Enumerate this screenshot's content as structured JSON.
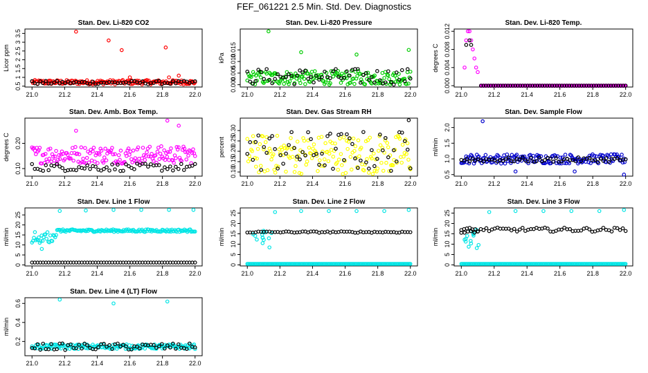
{
  "title": "FEF_061221  2.5 Min. Std. Dev. Diagnostics",
  "chart_data": [
    {
      "type": "scatter",
      "title": "Stan. Dev. Li-820 CO2",
      "ylabel": "Licor ppm",
      "xlim": [
        21.0,
        22.0
      ],
      "ylim": [
        0.45,
        3.75
      ],
      "xticks": [
        21.0,
        21.2,
        21.4,
        21.6,
        21.8,
        22.0
      ],
      "yticks": [
        0.5,
        1.0,
        1.5,
        2.0,
        2.5,
        3.0,
        3.5
      ],
      "ytick_labels": [
        "0.5",
        "1",
        "1.5",
        "2",
        "2.5",
        "3",
        "3.5"
      ],
      "series": [
        {
          "name": "red",
          "color": "#ff0000",
          "band": [
            0.6,
            0.85
          ],
          "outliers": [
            [
              21.27,
              3.6
            ],
            [
              21.47,
              3.1
            ],
            [
              21.55,
              2.55
            ],
            [
              21.82,
              2.7
            ],
            [
              21.6,
              1.0
            ],
            [
              21.84,
              1.0
            ],
            [
              21.9,
              1.1
            ]
          ]
        },
        {
          "name": "black",
          "color": "#000000",
          "band": [
            0.6,
            0.8
          ],
          "outliers": []
        }
      ]
    },
    {
      "type": "scatter",
      "title": "Stan. Dev. Li-820 Pressure",
      "ylabel": "kPa",
      "xlim": [
        21.0,
        22.0
      ],
      "ylim": [
        -0.001,
        0.024
      ],
      "xticks": [
        21.0,
        21.2,
        21.4,
        21.6,
        21.8,
        22.0
      ],
      "yticks": [
        0.0,
        0.005,
        0.01,
        0.015
      ],
      "ytick_labels": [
        "0.000",
        "0.005",
        "0.010",
        "0.015"
      ],
      "series": [
        {
          "name": "green",
          "color": "#00cc00",
          "band": [
            0.0,
            0.006
          ],
          "outliers": [
            [
              21.13,
              0.023
            ],
            [
              21.33,
              0.014
            ],
            [
              21.67,
              0.013
            ],
            [
              21.99,
              0.015
            ]
          ]
        },
        {
          "name": "black",
          "color": "#000000",
          "band": [
            0.0,
            0.007
          ],
          "outliers": []
        }
      ]
    },
    {
      "type": "scatter",
      "title": "Stan. Dev. Li-820 Temp.",
      "ylabel": "degrees C",
      "xlim": [
        21.0,
        22.0
      ],
      "ylim": [
        -0.0003,
        0.0125
      ],
      "xticks": [
        21.0,
        21.2,
        21.4,
        21.6,
        21.8,
        22.0
      ],
      "yticks": [
        0.0,
        0.004,
        0.008,
        0.012
      ],
      "ytick_labels": [
        "0.000",
        "0.004",
        "0.008",
        "0.012"
      ],
      "series": [
        {
          "name": "magenta",
          "color": "#ff00ff",
          "spike": [
            [
              21.02,
              0.004
            ],
            [
              21.03,
              0.01
            ],
            [
              21.04,
              0.012
            ],
            [
              21.05,
              0.012
            ],
            [
              21.06,
              0.01
            ],
            [
              21.07,
              0.008
            ],
            [
              21.08,
              0.006
            ],
            [
              21.09,
              0.004
            ],
            [
              21.1,
              0.003
            ],
            [
              21.12,
              0.0
            ]
          ],
          "band": [
            0.0,
            0.0
          ],
          "outliers": []
        },
        {
          "name": "black",
          "color": "#000000",
          "spike": [
            [
              21.03,
              0.009
            ],
            [
              21.05,
              0.01
            ],
            [
              21.06,
              0.009
            ]
          ],
          "band": [
            0.0,
            0.0
          ],
          "outliers": []
        }
      ]
    },
    {
      "type": "scatter",
      "title": "Stan. Dev. Amb. Box Temp.",
      "ylabel": "degrees C",
      "xlim": [
        21.0,
        22.0
      ],
      "ylim": [
        0.07,
        0.3
      ],
      "xticks": [
        21.0,
        21.2,
        21.4,
        21.6,
        21.8,
        22.0
      ],
      "yticks": [
        0.1,
        0.2
      ],
      "ytick_labels": [
        "0.10",
        "0.20"
      ],
      "series": [
        {
          "name": "magenta",
          "color": "#ff00ff",
          "band": [
            0.12,
            0.19
          ],
          "outliers": [
            [
              21.83,
              0.29
            ],
            [
              21.9,
              0.27
            ],
            [
              21.27,
              0.25
            ]
          ]
        },
        {
          "name": "black",
          "color": "#000000",
          "band": [
            0.09,
            0.12
          ],
          "outliers": []
        }
      ]
    },
    {
      "type": "scatter",
      "title": "Stan. Dev. Gas Stream RH",
      "ylabel": "percent",
      "xlim": [
        21.0,
        22.0
      ],
      "ylim": [
        0.08,
        0.36
      ],
      "xticks": [
        21.0,
        21.2,
        21.4,
        21.6,
        21.8,
        22.0
      ],
      "yticks": [
        0.1,
        0.15,
        0.2,
        0.25,
        0.3
      ],
      "ytick_labels": [
        "0.10",
        "0.15",
        "0.20",
        "0.25",
        "0.30"
      ],
      "series": [
        {
          "name": "yellow",
          "color": "#ffff00",
          "band": [
            0.09,
            0.28
          ],
          "outliers": []
        },
        {
          "name": "black",
          "color": "#000000",
          "band": [
            0.1,
            0.3
          ],
          "outliers": [
            [
              21.99,
              0.35
            ]
          ]
        }
      ]
    },
    {
      "type": "scatter",
      "title": "Stan. Dev. Sample Flow",
      "ylabel": "ml/min",
      "xlim": [
        21.0,
        22.0
      ],
      "ylim": [
        0.45,
        2.3
      ],
      "xticks": [
        21.0,
        21.2,
        21.4,
        21.6,
        21.8,
        22.0
      ],
      "yticks": [
        0.5,
        1.0,
        1.5,
        2.0
      ],
      "ytick_labels": [
        "0.5",
        "1.0",
        "1.5",
        "2.0"
      ],
      "series": [
        {
          "name": "blue",
          "color": "#0000cc",
          "band": [
            0.85,
            1.15
          ],
          "outliers": [
            [
              21.13,
              2.2
            ],
            [
              21.33,
              0.6
            ],
            [
              21.69,
              0.6
            ],
            [
              21.99,
              0.5
            ]
          ]
        },
        {
          "name": "black",
          "color": "#000000",
          "band": [
            0.9,
            1.05
          ],
          "outliers": []
        }
      ]
    },
    {
      "type": "scatter",
      "title": "Stan. Dev. Line 1 Flow",
      "ylabel": "ml/min",
      "xlim": [
        21.0,
        22.0
      ],
      "ylim": [
        -0.5,
        28.5
      ],
      "xticks": [
        21.0,
        21.2,
        21.4,
        21.6,
        21.8,
        22.0
      ],
      "yticks": [
        0,
        5,
        10,
        15,
        20,
        25
      ],
      "ytick_labels": [
        "0",
        "5",
        "10",
        "15",
        "20",
        "25"
      ],
      "series": [
        {
          "name": "cyan",
          "color": "#00e5e5",
          "band": [
            16.5,
            17.8
          ],
          "outliers": [
            [
              21.17,
              27
            ],
            [
              21.33,
              27.2
            ],
            [
              21.5,
              27.5
            ],
            [
              21.67,
              27.5
            ],
            [
              21.84,
              27.5
            ],
            [
              21.99,
              27.5
            ],
            [
              21.06,
              8
            ]
          ]
        },
        {
          "name": "black",
          "color": "#000000",
          "band": [
            1.2,
            1.2
          ],
          "outliers": []
        }
      ]
    },
    {
      "type": "scatter",
      "title": "Stan. Dev. Line 2 Flow",
      "ylabel": "ml/min",
      "xlim": [
        21.0,
        22.0
      ],
      "ylim": [
        -0.5,
        27.5
      ],
      "xticks": [
        21.0,
        21.2,
        21.4,
        21.6,
        21.8,
        22.0
      ],
      "yticks": [
        0,
        5,
        10,
        15,
        20,
        25
      ],
      "ytick_labels": [
        "0",
        "5",
        "10",
        "15",
        "20",
        "25"
      ],
      "series": [
        {
          "name": "cyan",
          "color": "#00e5e5",
          "band": [
            0.5,
            0.5
          ],
          "outliers": [
            [
              21.17,
              25.5
            ],
            [
              21.33,
              26
            ],
            [
              21.5,
              26
            ],
            [
              21.67,
              26
            ],
            [
              21.84,
              26
            ],
            [
              21.99,
              26.5
            ]
          ]
        },
        {
          "name": "black",
          "color": "#000000",
          "band": [
            15.5,
            16.2
          ],
          "outliers": []
        }
      ]
    },
    {
      "type": "scatter",
      "title": "Stan. Dev. Line 3 Flow",
      "ylabel": "ml/min",
      "xlim": [
        21.0,
        22.0
      ],
      "ylim": [
        -0.5,
        27.5
      ],
      "xticks": [
        21.0,
        21.2,
        21.4,
        21.6,
        21.8,
        22.0
      ],
      "yticks": [
        0,
        5,
        10,
        15,
        20,
        25
      ],
      "ytick_labels": [
        "0",
        "5",
        "10",
        "15",
        "20",
        "25"
      ],
      "series": [
        {
          "name": "cyan",
          "color": "#00e5e5",
          "band": [
            0.5,
            0.5
          ],
          "outliers": [
            [
              21.17,
              25.5
            ],
            [
              21.33,
              26
            ],
            [
              21.5,
              26
            ],
            [
              21.67,
              26
            ],
            [
              21.84,
              26
            ],
            [
              21.99,
              26.5
            ]
          ]
        },
        {
          "name": "black",
          "color": "#000000",
          "band": [
            16,
            18
          ],
          "outliers": []
        }
      ]
    },
    {
      "type": "scatter",
      "title": "Stan. Dev. Line 4 (LT) Flow",
      "ylabel": "ml/min",
      "xlim": [
        21.0,
        22.0
      ],
      "ylim": [
        0.05,
        0.66
      ],
      "xticks": [
        21.0,
        21.2,
        21.4,
        21.6,
        21.8,
        22.0
      ],
      "yticks": [
        0.2,
        0.4,
        0.6
      ],
      "ytick_labels": [
        "0.2",
        "0.4",
        "0.6"
      ],
      "series": [
        {
          "name": "cyan",
          "color": "#00e5e5",
          "band": [
            0.12,
            0.17
          ],
          "outliers": [
            [
              21.17,
              0.64
            ],
            [
              21.5,
              0.6
            ],
            [
              21.83,
              0.62
            ]
          ]
        },
        {
          "name": "black",
          "color": "#000000",
          "band": [
            0.11,
            0.18
          ],
          "outliers": []
        }
      ]
    }
  ]
}
